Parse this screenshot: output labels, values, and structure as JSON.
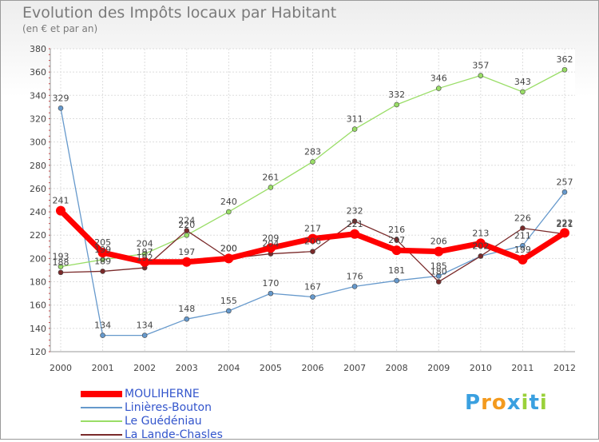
{
  "chart_data": {
    "type": "line",
    "title": "Evolution des Impôts locaux par Habitant",
    "subtitle": "(en € et par an)",
    "xlabel": "",
    "ylabel": "",
    "ylim": [
      120,
      380
    ],
    "yticks": [
      120,
      140,
      160,
      180,
      200,
      220,
      240,
      260,
      280,
      300,
      320,
      340,
      360,
      380
    ],
    "grid": true,
    "legend_position": "bottom-left",
    "x": [
      "2000",
      "2001",
      "2002",
      "2003",
      "2004",
      "2005",
      "2006",
      "2007",
      "2008",
      "2009",
      "2010",
      "2011",
      "2012"
    ],
    "series": [
      {
        "name": "MOULIHERNE",
        "color": "#ff0000",
        "values": [
          241,
          205,
          197,
          197,
          200,
          209,
          217,
          221,
          207,
          206,
          213,
          199,
          222
        ],
        "labels": [
          "241",
          "205",
          "197",
          "197",
          "200",
          "209",
          "217",
          "221",
          "207",
          "206",
          "213",
          "199",
          "222"
        ]
      },
      {
        "name": "Linières-Bouton",
        "color": "#6699cc",
        "values": [
          329,
          134,
          134,
          148,
          155,
          170,
          167,
          176,
          181,
          185,
          202,
          211,
          257
        ],
        "labels": [
          "329",
          "134",
          "134",
          "148",
          "155",
          "170",
          "167",
          "176",
          "181",
          "185",
          "202",
          "211",
          "257"
        ]
      },
      {
        "name": "Le Guédéniau",
        "color": "#99dd66",
        "values": [
          193,
          199,
          204,
          220,
          240,
          261,
          283,
          311,
          332,
          346,
          357,
          343,
          362
        ],
        "labels": [
          "193",
          "199",
          "204",
          "220",
          "240",
          "261",
          "283",
          "311",
          "332",
          "346",
          "357",
          "343",
          "362"
        ]
      },
      {
        "name": "La Lande-Chasles",
        "color": "#7a2a2a",
        "values": [
          188,
          189,
          192,
          224,
          200,
          204,
          206,
          232,
          216,
          180,
          202,
          226,
          221
        ],
        "labels": [
          "188",
          "189",
          "192",
          "224",
          "200",
          "204",
          "206",
          "232",
          "216",
          "180",
          "202",
          "226",
          "221"
        ]
      }
    ]
  },
  "brand": {
    "letters": [
      "P",
      "r",
      "o",
      "x",
      "i",
      "t",
      "i"
    ],
    "colors": [
      "#3aa0e0",
      "#f39a1e",
      "#f39a1e",
      "#3aa0e0",
      "#9ad13a",
      "#3aa0e0",
      "#9ad13a"
    ]
  }
}
